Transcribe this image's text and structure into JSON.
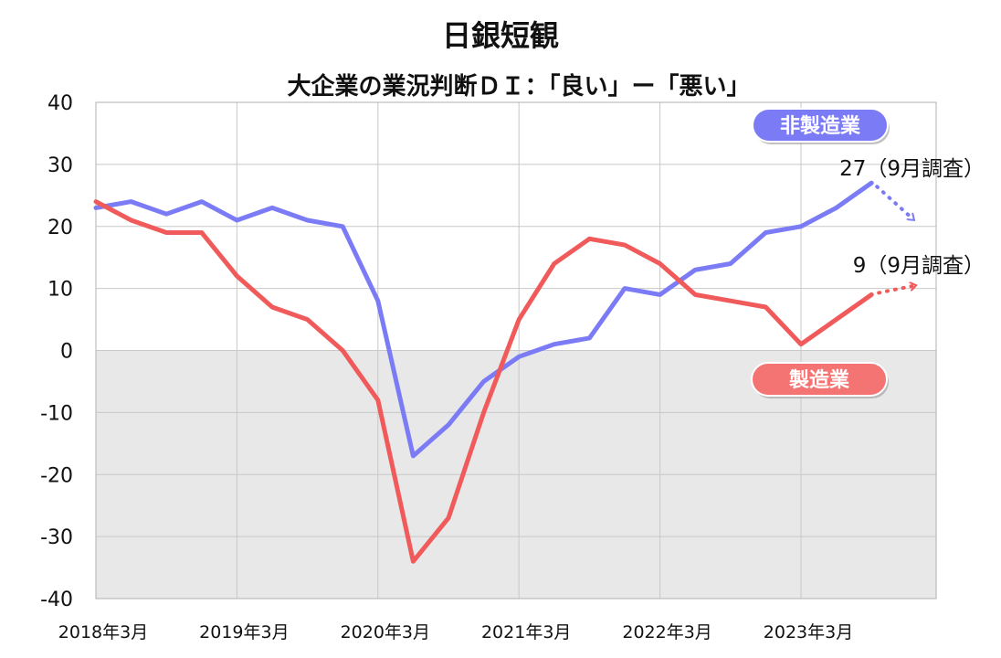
{
  "chart_data": {
    "type": "line",
    "title": "日銀短観",
    "subtitle": "大企業の業況判断ＤＩ：「良い」ー「悪い」",
    "ylim": [
      -40,
      40
    ],
    "yticks": [
      40,
      30,
      20,
      10,
      0,
      -10,
      -20,
      -30,
      -40
    ],
    "xticks": [
      "2018年3月",
      "2019年3月",
      "2020年3月",
      "2021年3月",
      "2022年3月",
      "2023年3月"
    ],
    "x": [
      "2018年3月",
      "2018年6月",
      "2018年9月",
      "2018年12月",
      "2019年3月",
      "2019年6月",
      "2019年9月",
      "2019年12月",
      "2020年3月",
      "2020年6月",
      "2020年9月",
      "2020年12月",
      "2021年3月",
      "2021年6月",
      "2021年9月",
      "2021年12月",
      "2022年3月",
      "2022年6月",
      "2022年9月",
      "2022年12月",
      "2023年3月",
      "2023年6月",
      "2023年9月"
    ],
    "grid": true,
    "series": [
      {
        "name": "非製造業",
        "color": "#7B7BF5",
        "values": [
          23,
          24,
          22,
          24,
          21,
          23,
          21,
          20,
          8,
          -17,
          -12,
          -5,
          -1,
          1,
          2,
          10,
          9,
          13,
          14,
          19,
          20,
          23,
          27
        ],
        "label": "非製造業",
        "annotation": "27（9月調査）"
      },
      {
        "name": "製造業",
        "color": "#F05A5A",
        "values": [
          24,
          21,
          19,
          19,
          12,
          7,
          5,
          0,
          -8,
          -34,
          -27,
          -10,
          5,
          14,
          18,
          17,
          14,
          9,
          8,
          7,
          1,
          5,
          9
        ],
        "label": "製造業",
        "annotation": "9（9月調査）"
      }
    ],
    "negative_region_color": "#E8E8E8"
  }
}
